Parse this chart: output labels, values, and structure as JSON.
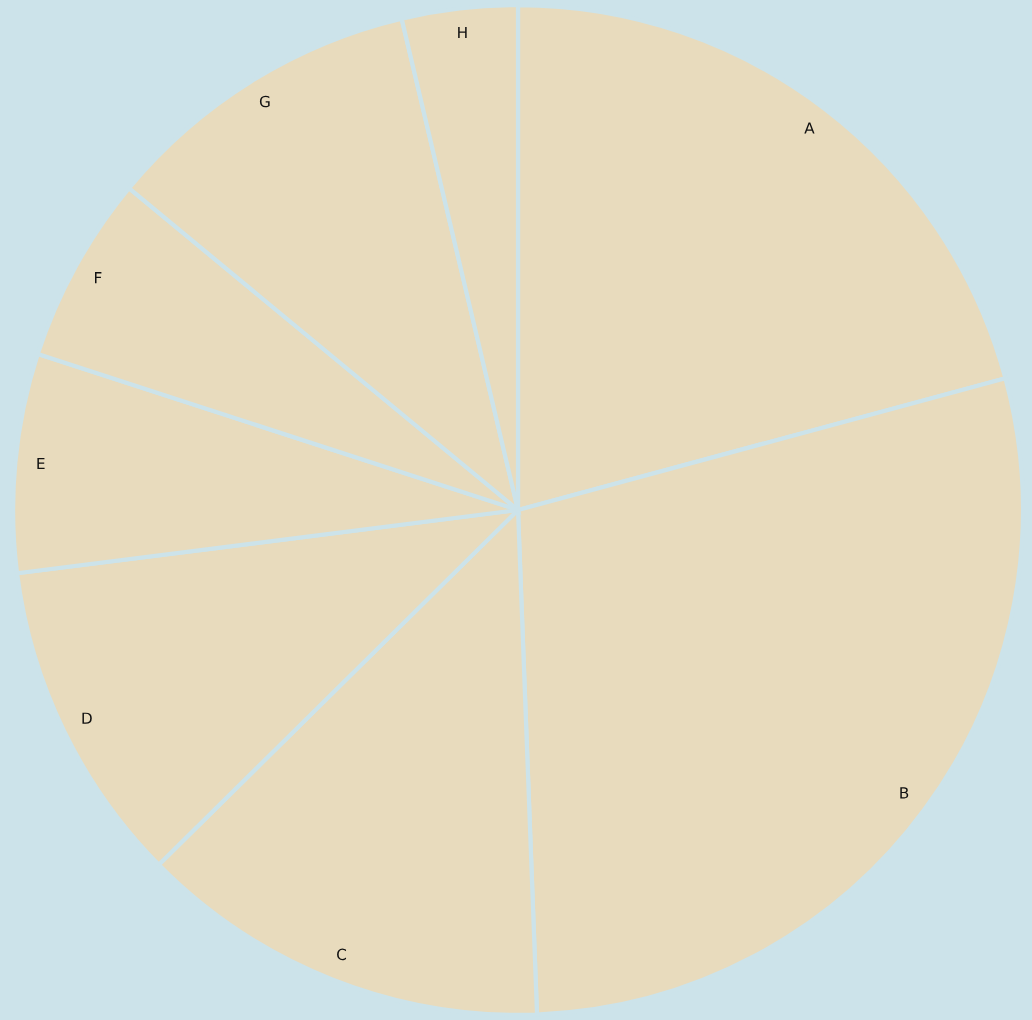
{
  "chart_data": {
    "type": "pie",
    "categories": [
      "A",
      "B",
      "C",
      "D",
      "E",
      "F",
      "G",
      "H"
    ],
    "values": [
      20.8,
      28.6,
      13.2,
      10.4,
      7.0,
      6.0,
      10.3,
      3.7
    ],
    "colors": [
      "#e8dbbd",
      "#e8dbbd",
      "#e8dbbd",
      "#e8dbbd",
      "#e8dbbd",
      "#e8dbbd",
      "#e8dbbd",
      "#e8dbbd"
    ]
  }
}
